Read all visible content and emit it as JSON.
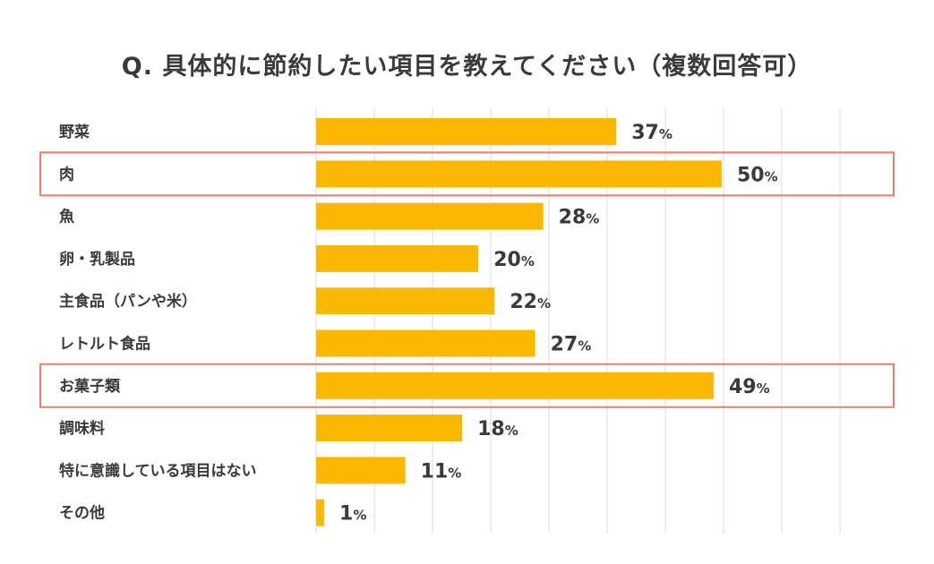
{
  "chart_data": {
    "type": "bar",
    "orientation": "horizontal",
    "title": "Q. 具体的に節約したい項目を教えてください（複数回答可）",
    "categories": [
      "野菜",
      "肉",
      "魚",
      "卵・乳製品",
      "主食品（パンや米）",
      "レトルト食品",
      "お菓子類",
      "調味料",
      "特に意識している項目はない",
      "その他"
    ],
    "values": [
      37,
      50,
      28,
      20,
      22,
      27,
      49,
      18,
      11,
      1
    ],
    "value_suffix": "%",
    "highlighted": [
      "肉",
      "お菓子類"
    ],
    "xlim": [
      0,
      65
    ],
    "grid": true,
    "bar_color": "#fbb800",
    "highlight_color": "#f07c6c",
    "grid_color": "#d9d9d9"
  }
}
